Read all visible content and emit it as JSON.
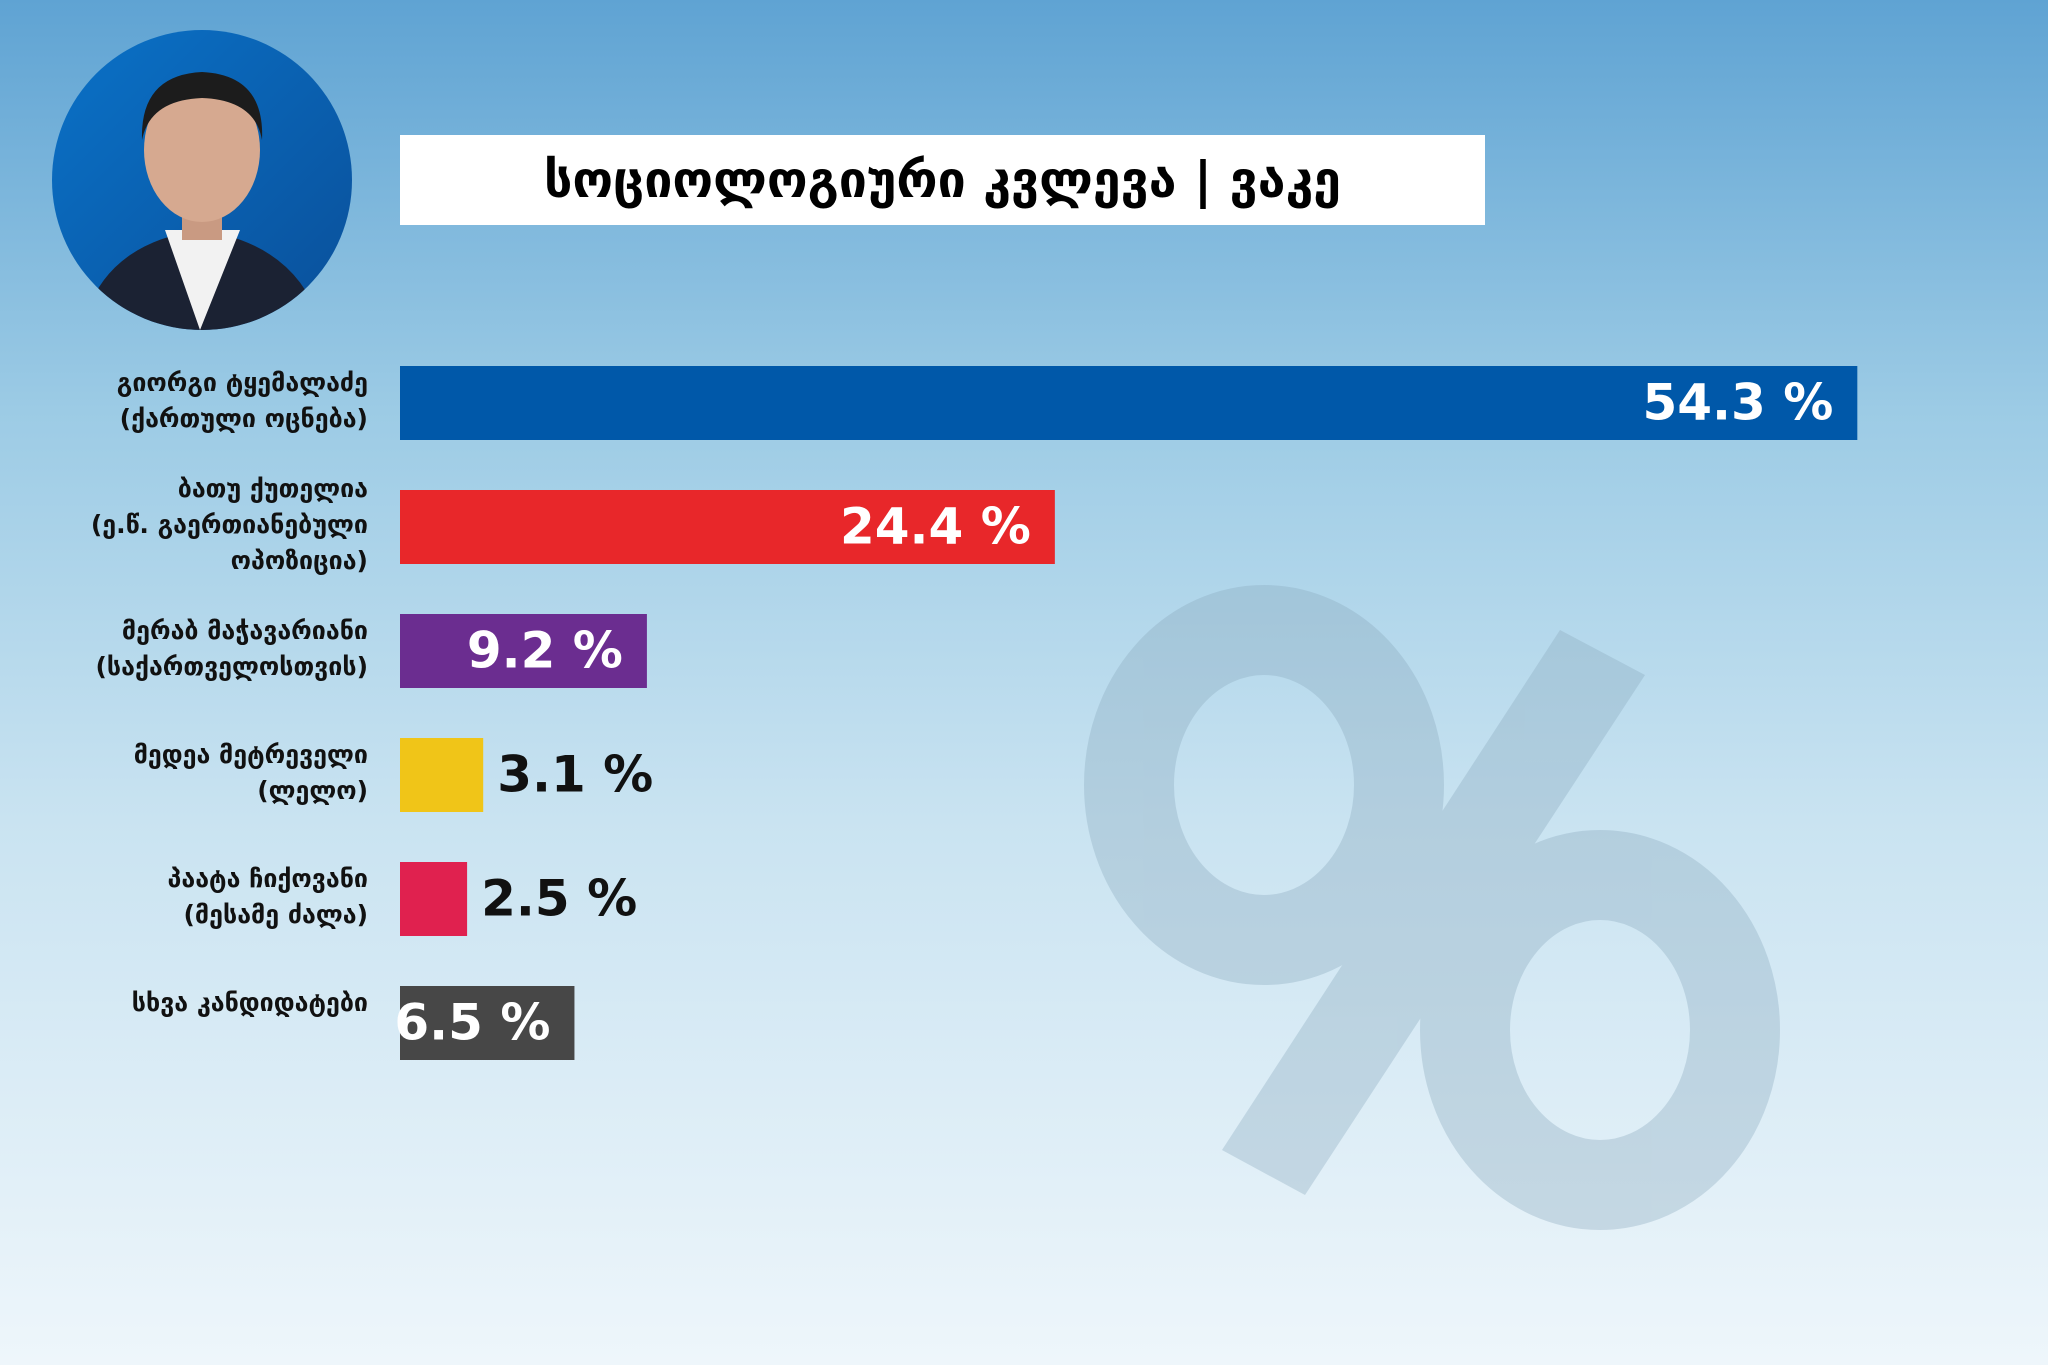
{
  "chart_data": {
    "type": "bar",
    "orientation": "horizontal",
    "title": "სოციოლოგიური კვლევა | ვაკე",
    "categories": [
      "გიორგი ტყემალაძე\n(ქართული ოცნება)",
      "ბათუ ქუთელია\n(ე.წ. გაერთიანებული\nოპოზიცია)",
      "მერაბ მაჭავარიანი\n(საქართველოსთვის)",
      "მედეა მეტრეველი\n(ლელო)",
      "პაატა ჩიქოვანი\n(მესამე ძალა)",
      "სხვა კანდიდატები"
    ],
    "values": [
      54.3,
      24.4,
      9.2,
      3.1,
      2.5,
      6.5
    ],
    "value_labels": [
      "54.3 %",
      "24.4 %",
      "9.2 %",
      "3.1 %",
      "2.5 %",
      "6.5 %"
    ],
    "colors": [
      "#0058a9",
      "#e8272a",
      "#6b2d90",
      "#f0c518",
      "#e0214f",
      "#474747"
    ]
  }
}
